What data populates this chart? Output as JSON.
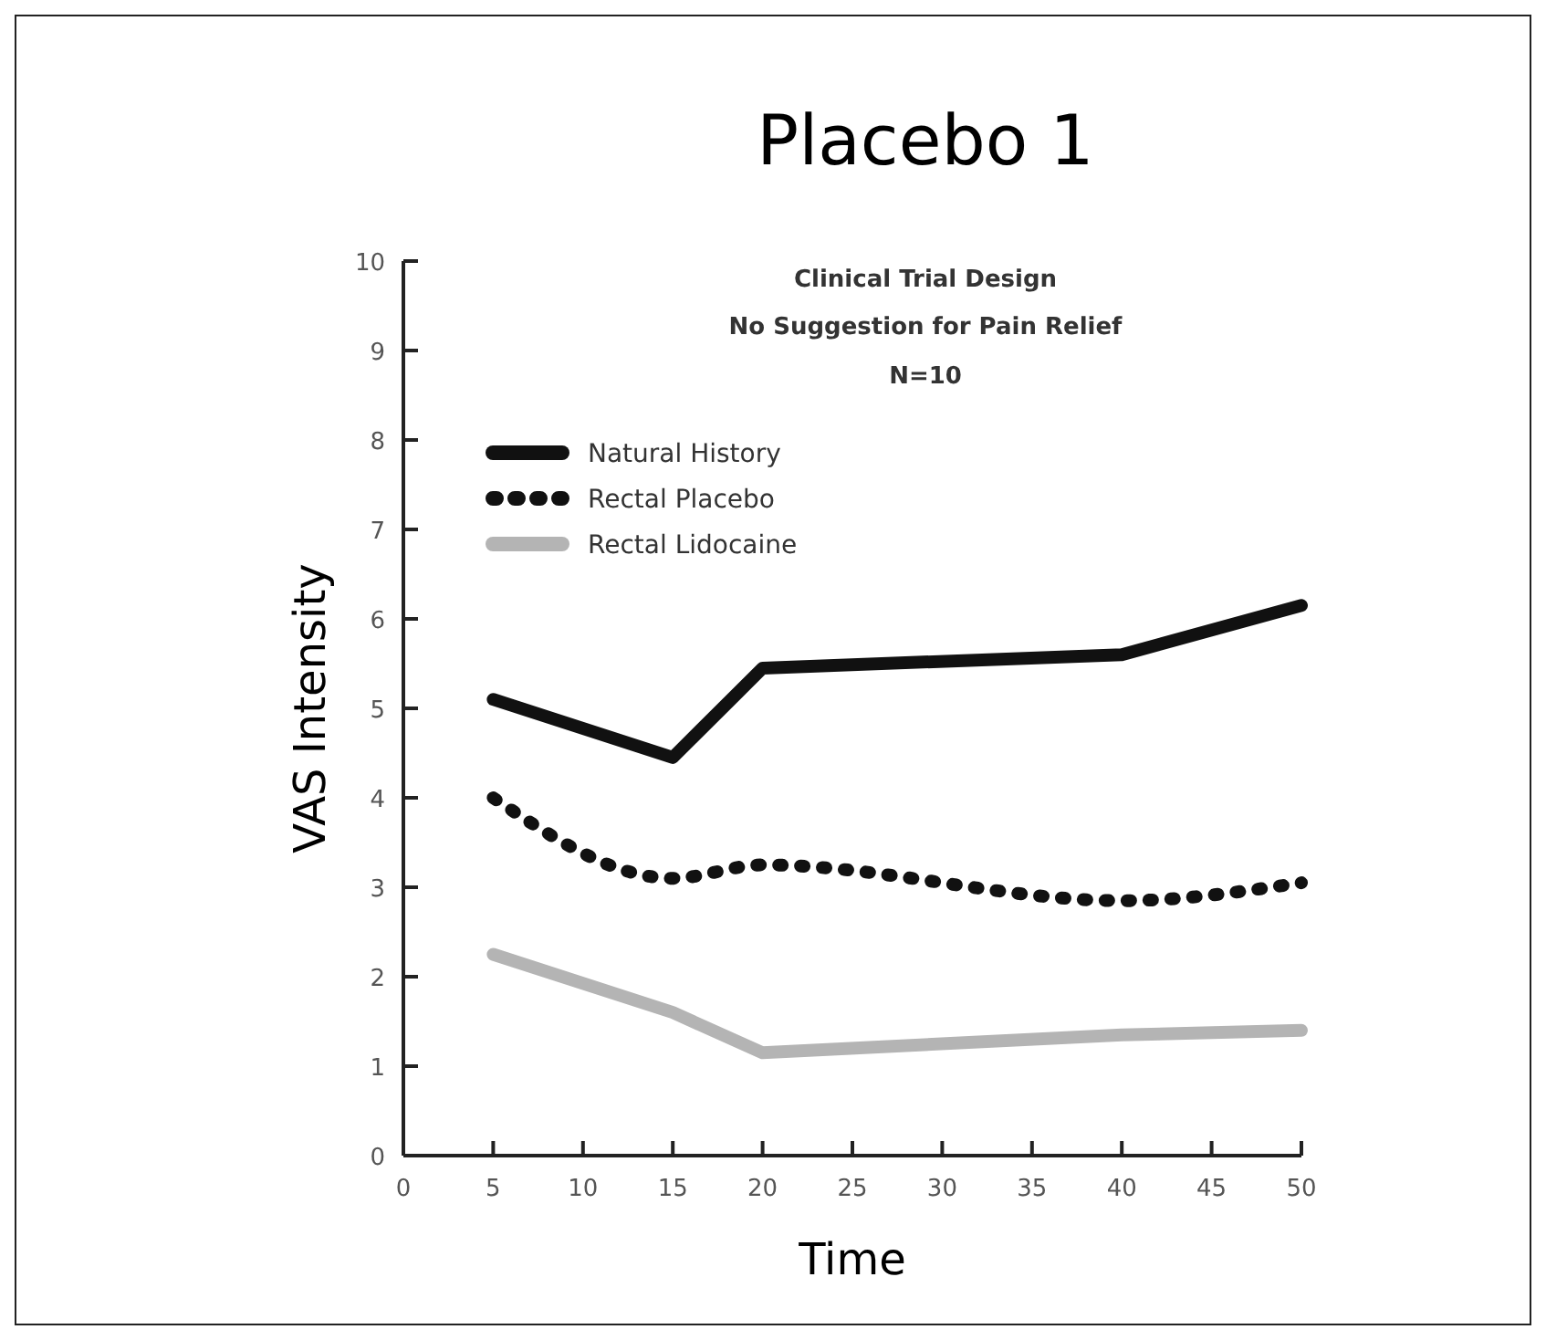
{
  "chart_data": {
    "type": "line",
    "title": "Placebo 1",
    "subtitle": "Clinical Trial Design",
    "annotations": [
      "No Suggestion for Pain Relief",
      "N=10"
    ],
    "xlabel": "Time",
    "ylabel": "VAS Intensity",
    "x": [
      5,
      15,
      20,
      40,
      50
    ],
    "series": [
      {
        "name": "Natural History",
        "color": "#111111",
        "line_style": "solid",
        "values": [
          5.1,
          4.45,
          5.45,
          5.6,
          6.15
        ]
      },
      {
        "name": "Rectal Placebo",
        "color": "#111111",
        "line_style": "dotted",
        "values": [
          4.0,
          3.1,
          3.25,
          2.85,
          3.05
        ]
      },
      {
        "name": "Rectal Lidocaine",
        "color": "#b4b4b4",
        "line_style": "solid",
        "values": [
          2.25,
          1.6,
          1.15,
          1.35,
          1.4
        ]
      }
    ],
    "xlim": [
      0,
      50
    ],
    "xticks": [
      0,
      5,
      10,
      15,
      20,
      25,
      30,
      35,
      40,
      45,
      50
    ],
    "ylim": [
      0,
      10
    ],
    "yticks": [
      0,
      1,
      2,
      3,
      4,
      5,
      6,
      7,
      8,
      9,
      10
    ],
    "grid": false,
    "legend": "top left"
  }
}
